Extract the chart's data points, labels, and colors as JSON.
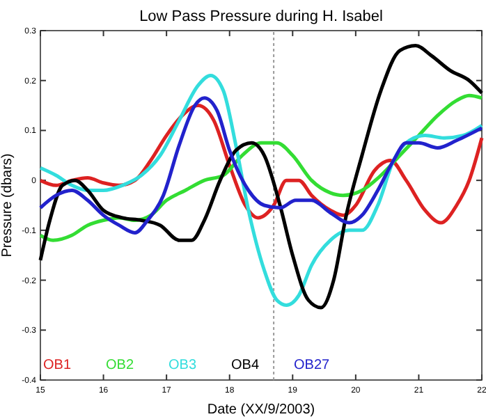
{
  "chart_data": {
    "type": "line",
    "title": "Low Pass Pressure during H. Isabel",
    "xlabel": "Date (XX/9/2003)",
    "ylabel": "Pressure (dbars)",
    "xlim": [
      15,
      22
    ],
    "xticks": [
      15,
      16,
      17,
      18,
      19,
      20,
      21,
      22
    ],
    "ylim": [
      -0.4,
      0.3
    ],
    "yticks": [
      -0.4,
      -0.3,
      -0.2,
      -0.1,
      0,
      0.1,
      0.2,
      0.3
    ],
    "legend": "bottom",
    "grid": false,
    "line_style": "solid",
    "marker": "none",
    "ref_lines": [
      {
        "axis": "x",
        "value": 18.7,
        "color": "#999999",
        "line_style": "dotted"
      }
    ],
    "series": [
      {
        "name": "OB1",
        "color": "#dd2222",
        "x": [
          15,
          15.25,
          15.5,
          15.75,
          16,
          16.25,
          16.5,
          16.75,
          17,
          17.25,
          17.5,
          17.75,
          18,
          18.25,
          18.45,
          18.7,
          18.9,
          19.1,
          19.3,
          19.6,
          19.8,
          20,
          20.3,
          20.55,
          20.8,
          21.1,
          21.35,
          21.6,
          21.8,
          22
        ],
        "values": [
          0,
          -0.01,
          0,
          0.005,
          -0.005,
          -0.01,
          0,
          0.04,
          0.09,
          0.13,
          0.15,
          0.12,
          0.03,
          -0.05,
          -0.075,
          -0.05,
          0,
          0,
          -0.03,
          -0.06,
          -0.07,
          -0.05,
          0.02,
          0.04,
          0,
          -0.06,
          -0.085,
          -0.05,
          0,
          0.085
        ]
      },
      {
        "name": "OB2",
        "color": "#33dd33",
        "x": [
          15,
          15.2,
          15.5,
          15.75,
          16,
          16.25,
          16.5,
          16.75,
          17,
          17.3,
          17.6,
          17.9,
          18.2,
          18.5,
          18.75,
          19,
          19.3,
          19.6,
          19.8,
          20.1,
          20.4,
          20.7,
          21,
          21.3,
          21.6,
          21.8,
          22
        ],
        "values": [
          -0.11,
          -0.12,
          -0.11,
          -0.09,
          -0.08,
          -0.075,
          -0.08,
          -0.07,
          -0.04,
          -0.02,
          0,
          0.01,
          0.05,
          0.075,
          0.075,
          0.05,
          0,
          -0.025,
          -0.03,
          -0.02,
          0.01,
          0.05,
          0.09,
          0.13,
          0.16,
          0.17,
          0.165
        ]
      },
      {
        "name": "OB3",
        "color": "#33dddd",
        "x": [
          15,
          15.25,
          15.5,
          15.75,
          16,
          16.3,
          16.6,
          16.9,
          17.2,
          17.5,
          17.7,
          17.9,
          18.1,
          18.3,
          18.55,
          18.75,
          18.9,
          19.1,
          19.3,
          19.6,
          19.9,
          20.1,
          20.35,
          20.6,
          20.85,
          21.1,
          21.4,
          21.7,
          22
        ],
        "values": [
          0.025,
          0.01,
          -0.01,
          -0.02,
          -0.02,
          -0.01,
          0.01,
          0.05,
          0.12,
          0.19,
          0.21,
          0.18,
          0.07,
          -0.06,
          -0.18,
          -0.24,
          -0.25,
          -0.23,
          -0.17,
          -0.12,
          -0.1,
          -0.1,
          -0.05,
          0.04,
          0.08,
          0.09,
          0.085,
          0.09,
          0.11
        ]
      },
      {
        "name": "OB4",
        "color": "#000000",
        "x": [
          15,
          15.15,
          15.35,
          15.55,
          15.75,
          16,
          16.3,
          16.6,
          16.9,
          17.2,
          17.4,
          17.6,
          17.85,
          18.1,
          18.35,
          18.55,
          18.8,
          19,
          19.25,
          19.45,
          19.65,
          19.85,
          20.1,
          20.4,
          20.7,
          20.95,
          21.2,
          21.5,
          21.8,
          22
        ],
        "values": [
          -0.16,
          -0.08,
          -0.01,
          0,
          -0.02,
          -0.06,
          -0.075,
          -0.08,
          -0.09,
          -0.12,
          -0.12,
          -0.08,
          0,
          0.06,
          0.075,
          0.05,
          -0.05,
          -0.15,
          -0.24,
          -0.255,
          -0.2,
          -0.07,
          0.05,
          0.18,
          0.26,
          0.27,
          0.25,
          0.22,
          0.2,
          0.175
        ]
      },
      {
        "name": "OB27",
        "color": "#2222cc",
        "x": [
          15,
          15.25,
          15.5,
          15.75,
          16,
          16.25,
          16.5,
          16.7,
          16.95,
          17.2,
          17.45,
          17.6,
          17.8,
          18,
          18.3,
          18.55,
          18.8,
          19.05,
          19.3,
          19.6,
          19.9,
          20.1,
          20.35,
          20.6,
          20.8,
          21,
          21.3,
          21.6,
          22
        ],
        "values": [
          -0.055,
          -0.03,
          -0.02,
          -0.04,
          -0.07,
          -0.09,
          -0.105,
          -0.08,
          -0.03,
          0.07,
          0.15,
          0.165,
          0.14,
          0.06,
          -0.02,
          -0.05,
          -0.055,
          -0.04,
          -0.04,
          -0.065,
          -0.085,
          -0.07,
          -0.02,
          0.04,
          0.075,
          0.075,
          0.065,
          0.08,
          0.105
        ]
      }
    ]
  }
}
